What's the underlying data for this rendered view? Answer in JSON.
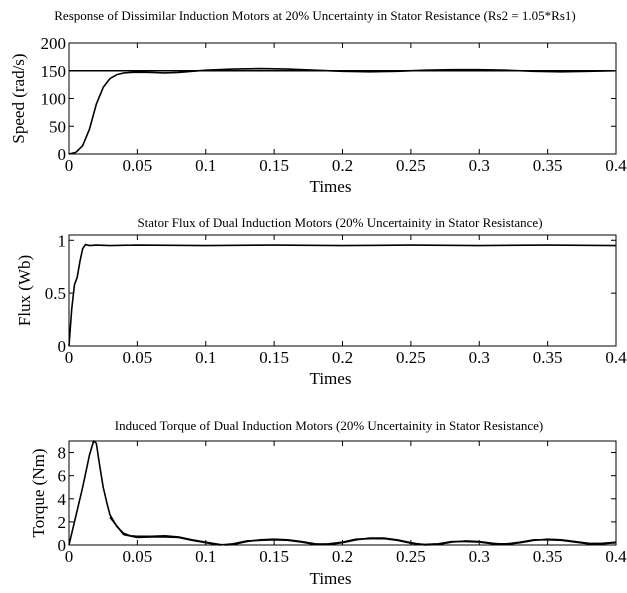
{
  "chart_data": [
    {
      "type": "line",
      "title": "Response of Dissimilar Induction Motors at 20% Uncertainty in Stator Resistance  (Rs2 = 1.05*Rs1)",
      "xlabel": "Times",
      "ylabel": "Speed (rad/s)",
      "xlim": [
        0,
        0.4
      ],
      "ylim": [
        0,
        200
      ],
      "xticks": [
        "0",
        "0.05",
        "0.1",
        "0.15",
        "0.2",
        "0.25",
        "0.3",
        "0.35",
        "0.4"
      ],
      "yticks": [
        "0",
        "50",
        "100",
        "150",
        "200"
      ],
      "grid": false,
      "series": [
        {
          "color": "#000000",
          "x": [
            0,
            0.005,
            0.01,
            0.015,
            0.02,
            0.025,
            0.03,
            0.035,
            0.04,
            0.045,
            0.05,
            0.06,
            0.07,
            0.08,
            0.09,
            0.1,
            0.12,
            0.14,
            0.16,
            0.18,
            0.2,
            0.22,
            0.24,
            0.26,
            0.28,
            0.3,
            0.32,
            0.34,
            0.36,
            0.38,
            0.4
          ],
          "y": [
            0,
            3,
            15,
            45,
            90,
            120,
            136,
            143,
            146,
            147,
            147.5,
            147,
            146,
            147,
            149,
            151,
            153,
            154,
            153,
            151,
            149,
            148,
            149,
            151,
            152,
            152,
            151,
            149,
            148,
            149,
            150
          ]
        },
        {
          "color": "#000000",
          "x": [
            0,
            0.4
          ],
          "y": [
            150,
            150
          ]
        }
      ]
    },
    {
      "type": "line",
      "title": "Stator Flux of Dual Induction Motors (20% Uncertainity in Stator Resistance)",
      "xlabel": "Times",
      "ylabel": "Flux (Wb)",
      "xlim": [
        0,
        0.4
      ],
      "ylim": [
        0,
        1.05
      ],
      "xticks": [
        "0",
        "0.05",
        "0.1",
        "0.15",
        "0.2",
        "0.25",
        "0.3",
        "0.35",
        "0.4"
      ],
      "yticks": [
        "0",
        "0.5",
        "1"
      ],
      "grid": false,
      "series": [
        {
          "color": "#000000",
          "x": [
            0,
            0.002,
            0.004,
            0.006,
            0.008,
            0.01,
            0.012,
            0.015,
            0.02,
            0.03,
            0.05,
            0.1,
            0.15,
            0.2,
            0.25,
            0.3,
            0.35,
            0.4
          ],
          "y": [
            0,
            0.35,
            0.58,
            0.65,
            0.8,
            0.92,
            0.96,
            0.95,
            0.955,
            0.95,
            0.955,
            0.95,
            0.955,
            0.95,
            0.955,
            0.95,
            0.955,
            0.95
          ]
        }
      ]
    },
    {
      "type": "line",
      "title": "Induced Torque of Dual Induction Motors (20% Uncertainity in Stator Resistance)",
      "xlabel": "Times",
      "ylabel": "Torque (Nm)",
      "xlim": [
        0,
        0.4
      ],
      "ylim": [
        0,
        9
      ],
      "xticks": [
        "0",
        "0.05",
        "0.1",
        "0.15",
        "0.2",
        "0.25",
        "0.3",
        "0.35",
        "0.4"
      ],
      "yticks": [
        "0",
        "2",
        "4",
        "6",
        "8"
      ],
      "grid": false,
      "series": [
        {
          "color": "#000000",
          "x": [
            0,
            0.005,
            0.01,
            0.015,
            0.018,
            0.02,
            0.022,
            0.025,
            0.028,
            0.03,
            0.035,
            0.04,
            0.045,
            0.05,
            0.06,
            0.07,
            0.08,
            0.09,
            0.1,
            0.11,
            0.115,
            0.12,
            0.13,
            0.14,
            0.15,
            0.16,
            0.17,
            0.18,
            0.19,
            0.2,
            0.21,
            0.22,
            0.23,
            0.24,
            0.25,
            0.26,
            0.27,
            0.28,
            0.29,
            0.3,
            0.31,
            0.32,
            0.33,
            0.34,
            0.35,
            0.36,
            0.37,
            0.38,
            0.39,
            0.4
          ],
          "y": [
            0,
            2.5,
            5,
            7.8,
            9,
            8.8,
            7.2,
            5,
            3.5,
            2.6,
            1.6,
            1.0,
            0.8,
            0.75,
            0.75,
            0.8,
            0.7,
            0.45,
            0.25,
            0.05,
            0.0,
            0.05,
            0.3,
            0.45,
            0.5,
            0.45,
            0.3,
            0.1,
            0.05,
            0.2,
            0.45,
            0.6,
            0.6,
            0.45,
            0.2,
            0.0,
            0.05,
            0.25,
            0.35,
            0.3,
            0.15,
            0.05,
            0.2,
            0.4,
            0.5,
            0.45,
            0.3,
            0.15,
            0.1,
            0.2
          ]
        },
        {
          "color": "#000000",
          "x": [
            0.03,
            0.04,
            0.05,
            0.06,
            0.07,
            0.08,
            0.09,
            0.1,
            0.11,
            0.12,
            0.13,
            0.14,
            0.15,
            0.16,
            0.17,
            0.18,
            0.19,
            0.2,
            0.21,
            0.22,
            0.23,
            0.24,
            0.25,
            0.26,
            0.27,
            0.28,
            0.29,
            0.3,
            0.31,
            0.32,
            0.33,
            0.34,
            0.35,
            0.36,
            0.37,
            0.38,
            0.39,
            0.4
          ],
          "y": [
            2.4,
            0.9,
            0.65,
            0.7,
            0.7,
            0.65,
            0.4,
            0.2,
            0.0,
            0.1,
            0.35,
            0.4,
            0.45,
            0.4,
            0.25,
            0.05,
            0.1,
            0.25,
            0.5,
            0.55,
            0.55,
            0.4,
            0.15,
            0.05,
            0.1,
            0.3,
            0.3,
            0.25,
            0.1,
            0.1,
            0.25,
            0.45,
            0.45,
            0.4,
            0.25,
            0.1,
            0.15,
            0.25
          ]
        }
      ]
    }
  ]
}
